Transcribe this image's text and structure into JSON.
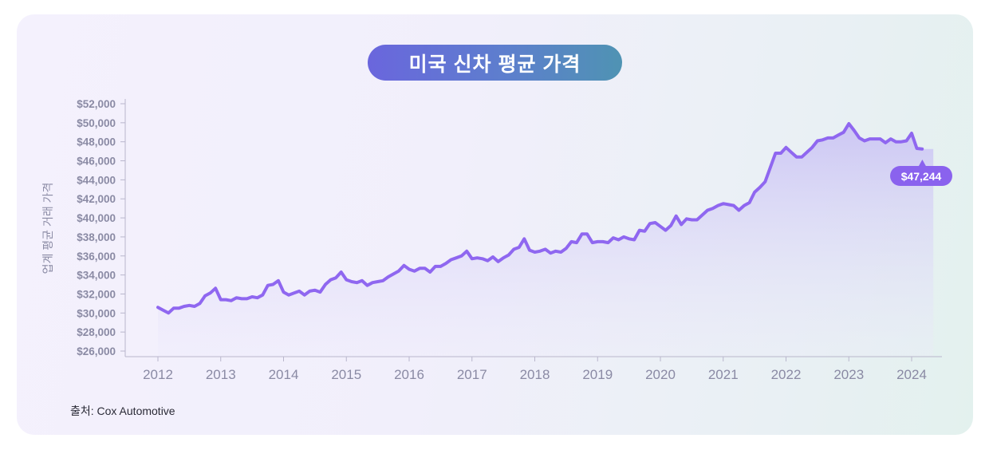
{
  "source_label": "출처: Cox Automotive",
  "chart_data": {
    "type": "area",
    "title": "미국 신차 평균 가격",
    "xlabel": "",
    "ylabel": "업계 평균 거래 가격",
    "ylim": [
      26000,
      52000
    ],
    "xlim": [
      2012,
      2024.5
    ],
    "yticks": [
      "$52,000",
      "$50,000",
      "$48,000",
      "$46,000",
      "$44,000",
      "$42,000",
      "$40,000",
      "$38,000",
      "$36,000",
      "$34,000",
      "$32,000",
      "$30,000",
      "$28,000",
      "$26,000"
    ],
    "ytick_values": [
      52000,
      50000,
      48000,
      46000,
      44000,
      42000,
      40000,
      38000,
      36000,
      34000,
      32000,
      30000,
      28000,
      26000
    ],
    "xticks": [
      "2012",
      "2013",
      "2014",
      "2015",
      "2016",
      "2017",
      "2018",
      "2019",
      "2020",
      "2021",
      "2022",
      "2023",
      "2024"
    ],
    "xtick_values": [
      2012,
      2013,
      2014,
      2015,
      2016,
      2017,
      2018,
      2019,
      2020,
      2021,
      2022,
      2023,
      2024
    ],
    "colors": {
      "line": "#8f67f0",
      "fill": "#c9c2f3",
      "callout": "#8a62ee"
    },
    "callout": {
      "text": "$47,244",
      "x": 2024.17,
      "y": 47244
    },
    "series": [
      {
        "x": [
          2012.0,
          2012.083,
          2012.167,
          2012.25,
          2012.333,
          2012.417,
          2012.5,
          2012.583,
          2012.667,
          2012.75,
          2012.833,
          2012.917,
          2013.0,
          2013.083,
          2013.167,
          2013.25,
          2013.333,
          2013.417,
          2013.5,
          2013.583,
          2013.667,
          2013.75,
          2013.833,
          2013.917,
          2014.0,
          2014.083,
          2014.167,
          2014.25,
          2014.333,
          2014.417,
          2014.5,
          2014.583,
          2014.667,
          2014.75,
          2014.833,
          2014.917,
          2015.0,
          2015.083,
          2015.167,
          2015.25,
          2015.333,
          2015.417,
          2015.5,
          2015.583,
          2015.667,
          2015.75,
          2015.833,
          2015.917,
          2016.0,
          2016.083,
          2016.167,
          2016.25,
          2016.333,
          2016.417,
          2016.5,
          2016.583,
          2016.667,
          2016.75,
          2016.833,
          2016.917,
          2017.0,
          2017.083,
          2017.167,
          2017.25,
          2017.333,
          2017.417,
          2017.5,
          2017.583,
          2017.667,
          2017.75,
          2017.833,
          2017.917,
          2018.0,
          2018.083,
          2018.167,
          2018.25,
          2018.333,
          2018.417,
          2018.5,
          2018.583,
          2018.667,
          2018.75,
          2018.833,
          2018.917,
          2019.0,
          2019.083,
          2019.167,
          2019.25,
          2019.333,
          2019.417,
          2019.5,
          2019.583,
          2019.667,
          2019.75,
          2019.833,
          2019.917,
          2020.0,
          2020.083,
          2020.167,
          2020.25,
          2020.333,
          2020.417,
          2020.5,
          2020.583,
          2020.667,
          2020.75,
          2020.833,
          2020.917,
          2021.0,
          2021.083,
          2021.167,
          2021.25,
          2021.333,
          2021.417,
          2021.5,
          2021.583,
          2021.667,
          2021.75,
          2021.833,
          2021.917,
          2022.0,
          2022.083,
          2022.167,
          2022.25,
          2022.333,
          2022.417,
          2022.5,
          2022.583,
          2022.667,
          2022.75,
          2022.833,
          2022.917,
          2023.0,
          2023.083,
          2023.167,
          2023.25,
          2023.333,
          2023.417,
          2023.5,
          2023.583,
          2023.667,
          2023.75,
          2023.833,
          2023.917,
          2024.0,
          2024.083,
          2024.167
        ],
        "y": [
          30600,
          30300,
          30000,
          30500,
          30500,
          30700,
          30800,
          30700,
          31000,
          31800,
          32100,
          32600,
          31400,
          31400,
          31300,
          31600,
          31500,
          31500,
          31700,
          31600,
          31900,
          32900,
          33000,
          33400,
          32200,
          31900,
          32100,
          32300,
          31900,
          32300,
          32400,
          32200,
          33000,
          33500,
          33700,
          34300,
          33500,
          33300,
          33200,
          33400,
          32900,
          33200,
          33300,
          33400,
          33800,
          34100,
          34400,
          35000,
          34600,
          34400,
          34700,
          34700,
          34300,
          34900,
          34900,
          35200,
          35600,
          35800,
          36000,
          36500,
          35700,
          35800,
          35700,
          35500,
          35900,
          35400,
          35800,
          36100,
          36700,
          36900,
          37800,
          36600,
          36400,
          36500,
          36700,
          36300,
          36500,
          36400,
          36800,
          37500,
          37400,
          38300,
          38300,
          37400,
          37500,
          37500,
          37400,
          37900,
          37700,
          38000,
          37800,
          37700,
          38700,
          38600,
          39400,
          39500,
          39100,
          38700,
          39200,
          40200,
          39300,
          39900,
          39800,
          39800,
          40300,
          40800,
          41000,
          41300,
          41500,
          41400,
          41300,
          40800,
          41300,
          41600,
          42700,
          43200,
          43800,
          45300,
          46800,
          46800,
          47400,
          46900,
          46400,
          46400,
          46900,
          47400,
          48100,
          48200,
          48400,
          48400,
          48700,
          49000,
          49900,
          49200,
          48400,
          48100,
          48300,
          48300,
          48300,
          47900,
          48300,
          48000,
          48000,
          48100,
          48900,
          47300,
          47244
        ]
      }
    ]
  }
}
